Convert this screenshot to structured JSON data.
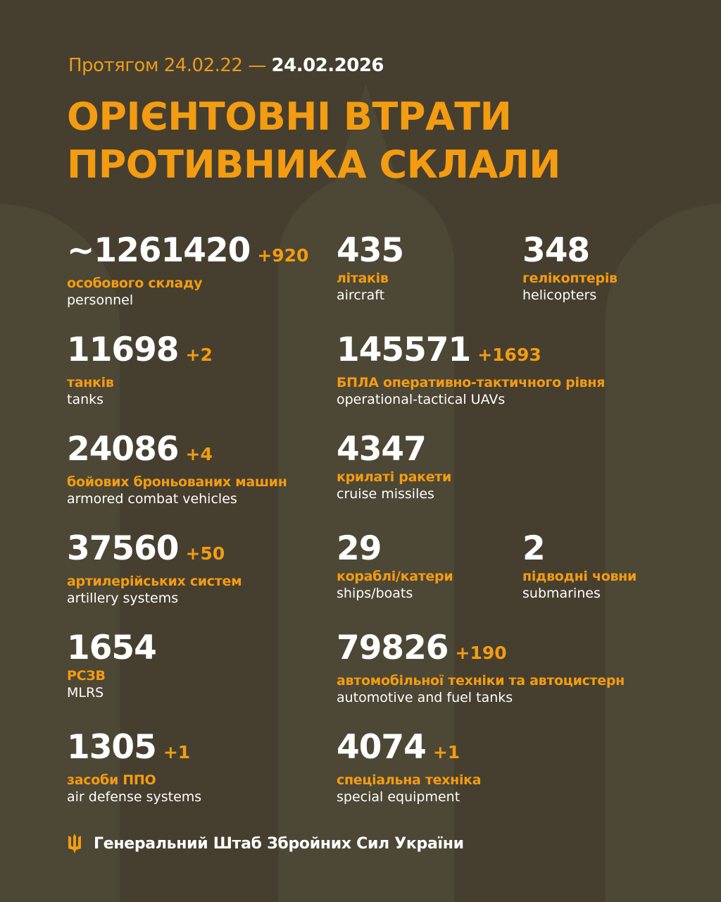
{
  "header": {
    "period_prefix": "Протягом 24.02.22 —",
    "period_end": "24.02.2026",
    "title_line1": "ОРІЄНТОВНІ ВТРАТИ",
    "title_line2": "ПРОТИВНИКА СКЛАЛИ"
  },
  "items": [
    {
      "value": "~1261420",
      "delta": "+920",
      "ua": "особового складу",
      "en": "personnel"
    },
    {
      "value": "435",
      "delta": "",
      "ua": "літаків",
      "en": "aircraft"
    },
    {
      "value": "348",
      "delta": "",
      "ua": "гелікоптерів",
      "en": "helicopters"
    },
    {
      "value": "11698",
      "delta": "+2",
      "ua": "танків",
      "en": "tanks"
    },
    {
      "value": "145571",
      "delta": "+1693",
      "ua": "БПЛА оперативно-тактичного рівня",
      "en": "operational-tactical UAVs"
    },
    {
      "value": "24086",
      "delta": "+4",
      "ua": "бойових броньованих машин",
      "en": "armored combat vehicles"
    },
    {
      "value": "4347",
      "delta": "",
      "ua": "крилаті ракети",
      "en": "cruise missiles"
    },
    {
      "value": "37560",
      "delta": "+50",
      "ua": "артилерійських систем",
      "en": "artillery systems"
    },
    {
      "value": "29",
      "delta": "",
      "ua": "кораблі/катери",
      "en": "ships/boats"
    },
    {
      "value": "2",
      "delta": "",
      "ua": "підводні човни",
      "en": "submarines"
    },
    {
      "value": "1654",
      "delta": "",
      "ua": "РСЗВ",
      "en": "MLRS"
    },
    {
      "value": "79826",
      "delta": "+190",
      "ua": "автомобільної техніки та автоцистерн",
      "en": "automotive and fuel tanks"
    },
    {
      "value": "1305",
      "delta": "+1",
      "ua": "засоби ППО",
      "en": "air defense systems"
    },
    {
      "value": "4074",
      "delta": "+1",
      "ua": "спеціальна техніка",
      "en": "special equipment"
    }
  ],
  "footer": {
    "text": "Генеральний Штаб Збройних Сил України",
    "icon": "trident-icon"
  },
  "colors": {
    "background": "#463f2f",
    "accent": "#f39c12",
    "text": "#ffffff"
  }
}
